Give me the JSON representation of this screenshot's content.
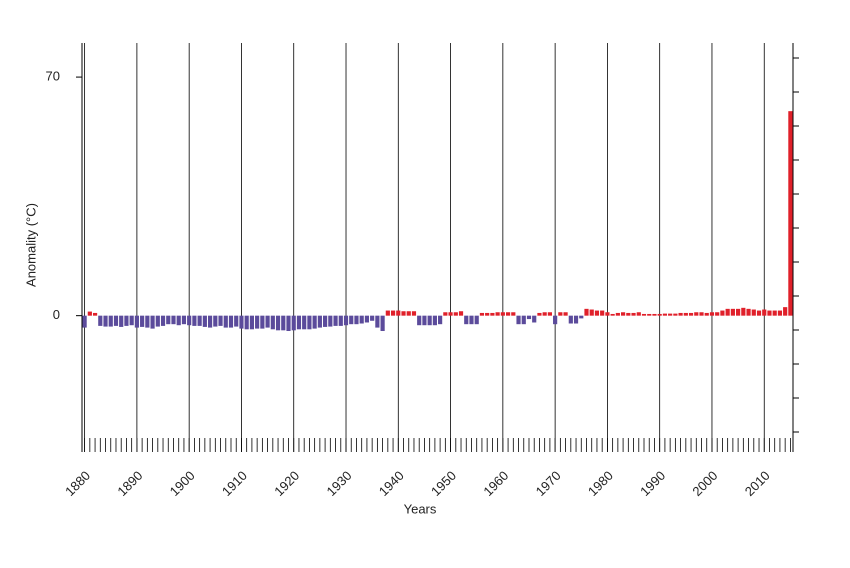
{
  "chart_data": {
    "type": "bar",
    "y_label": "Anomality (°C)",
    "x_label": "Years",
    "x": [
      1880,
      1881,
      1882,
      1883,
      1884,
      1885,
      1886,
      1887,
      1888,
      1889,
      1890,
      1891,
      1892,
      1893,
      1894,
      1895,
      1896,
      1897,
      1898,
      1899,
      1900,
      1901,
      1902,
      1903,
      1904,
      1905,
      1906,
      1907,
      1908,
      1909,
      1910,
      1911,
      1912,
      1913,
      1914,
      1915,
      1916,
      1917,
      1918,
      1919,
      1920,
      1921,
      1922,
      1923,
      1924,
      1925,
      1926,
      1927,
      1928,
      1929,
      1930,
      1931,
      1932,
      1933,
      1934,
      1935,
      1936,
      1937,
      1938,
      1939,
      1940,
      1941,
      1942,
      1943,
      1944,
      1945,
      1946,
      1947,
      1948,
      1949,
      1950,
      1951,
      1952,
      1953,
      1954,
      1955,
      1956,
      1957,
      1958,
      1959,
      1960,
      1961,
      1962,
      1963,
      1964,
      1965,
      1966,
      1967,
      1968,
      1969,
      1970,
      1971,
      1972,
      1973,
      1974,
      1975,
      1976,
      1977,
      1978,
      1979,
      1980,
      1981,
      1982,
      1983,
      1984,
      1985,
      1986,
      1987,
      1988,
      1989,
      1990,
      1991,
      1992,
      1993,
      1994,
      1995,
      1996,
      1997,
      1998,
      1999,
      2000,
      2001,
      2002,
      2003,
      2004,
      2005,
      2006,
      2007,
      2008,
      2009,
      2010,
      2011,
      2012,
      2013,
      2014,
      2015
    ],
    "values": [
      -3.5,
      1.2,
      0.8,
      -3,
      -3.2,
      -3.2,
      -3,
      -3.3,
      -3,
      -2.8,
      -3.5,
      -3.3,
      -3.5,
      -3.8,
      -3.2,
      -3,
      -2.5,
      -2.5,
      -2.8,
      -2.5,
      -2.8,
      -3,
      -3,
      -3.3,
      -3.5,
      -3.2,
      -3,
      -3.5,
      -3.5,
      -3.2,
      -3.8,
      -4,
      -4,
      -3.8,
      -3.8,
      -3.5,
      -4,
      -4.3,
      -4.3,
      -4.5,
      -4.3,
      -4,
      -4,
      -4,
      -3.8,
      -3.5,
      -3.3,
      -3.2,
      -3,
      -3,
      -2.8,
      -2.5,
      -2.5,
      -2.3,
      -2,
      -1.5,
      -3.5,
      -4.5,
      1.5,
      1.5,
      1.5,
      1.3,
      1.3,
      1.3,
      -2.8,
      -2.8,
      -2.8,
      -2.8,
      -2.5,
      1,
      1,
      1,
      1.3,
      -2.5,
      -2.5,
      -2.5,
      0.8,
      0.8,
      0.8,
      1,
      1,
      1,
      1,
      -2.5,
      -2.5,
      -1,
      -2,
      0.8,
      1,
      1,
      -2.5,
      1,
      1,
      -2.3,
      -2.3,
      -0.8,
      2,
      1.8,
      1.5,
      1.5,
      1,
      0.5,
      0.8,
      1,
      0.8,
      0.8,
      1,
      0.5,
      0.5,
      0.5,
      0.5,
      0.6,
      0.6,
      0.6,
      0.8,
      0.8,
      0.8,
      1,
      1,
      0.8,
      1,
      1,
      1.5,
      2,
      2,
      2,
      2.3,
      2,
      1.8,
      1.5,
      1.8,
      1.5,
      1.5,
      1.5,
      2.5,
      60
    ],
    "color_positive": "#e0202a",
    "color_negative": "#5b4b9b",
    "xlim": [
      1879.5,
      2015.5
    ],
    "xticks": [
      1880,
      1890,
      1900,
      1910,
      1920,
      1930,
      1940,
      1950,
      1960,
      1970,
      1980,
      1990,
      2000,
      2010
    ],
    "ylim": [
      -40,
      80
    ],
    "yticks": [
      0,
      70
    ],
    "grid": true
  }
}
